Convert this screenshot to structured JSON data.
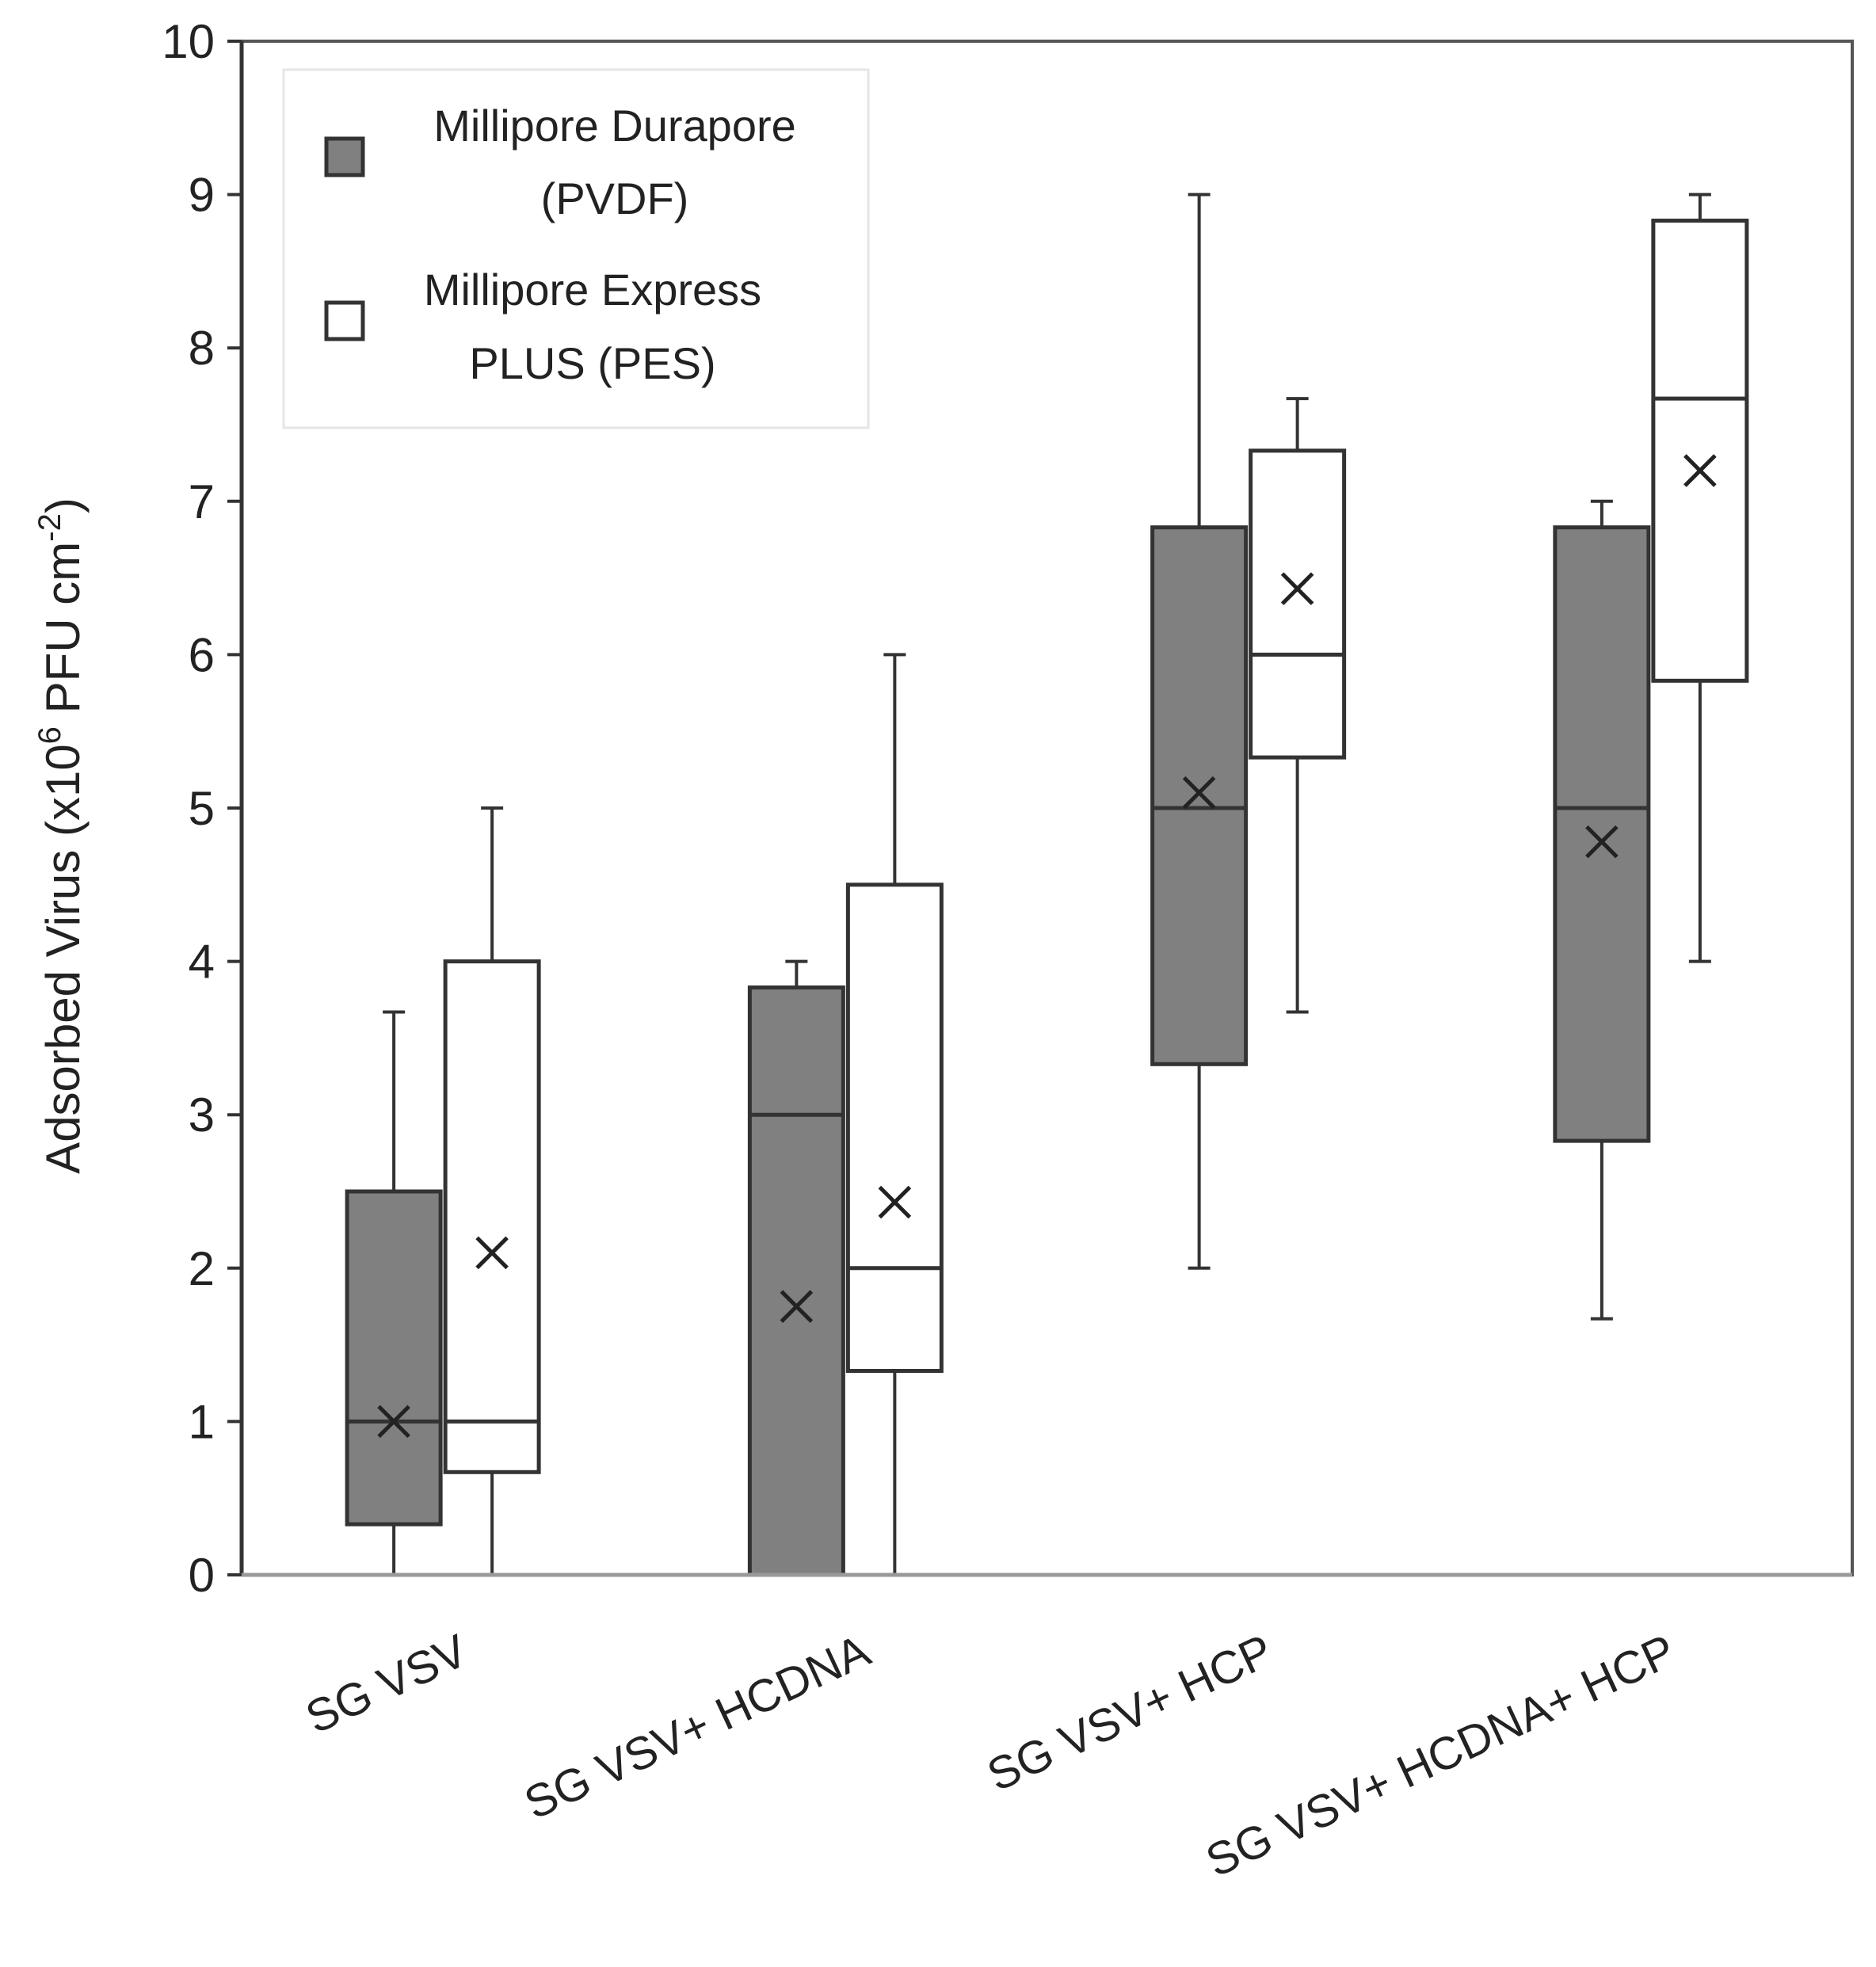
{
  "chart_data": {
    "type": "boxplot",
    "title": "",
    "xlabel": "",
    "ylabel": {
      "prefix": "Adsorbed Virus (x10",
      "exp1": "6",
      "middle": " PFU cm",
      "exp2": "-2",
      "suffix": ")"
    },
    "ylim": [
      0,
      10
    ],
    "yticks": [
      "0",
      "1",
      "2",
      "3",
      "4",
      "5",
      "6",
      "7",
      "8",
      "9",
      "10"
    ],
    "categories": [
      "SG VSV",
      "SG VSV+ HCDNA",
      "SG VSV+ HCP",
      "SG VSV+ HCDNA+ HCP"
    ],
    "legend": {
      "position": "top-left",
      "entries": [
        {
          "lines": [
            "Millipore Durapore",
            "(PVDF)"
          ],
          "color": "#808080"
        },
        {
          "lines": [
            "Millipore Express",
            "PLUS (PES)"
          ],
          "color": "#ffffff"
        }
      ]
    },
    "series": [
      {
        "name": "Millipore Durapore (PVDF)",
        "color": "#808080",
        "boxes": [
          {
            "min": 0,
            "q1": 0.33,
            "median": 1,
            "q3": 2.5,
            "max": 3.67,
            "mean": 1
          },
          {
            "min": 0,
            "q1": 0,
            "median": 3,
            "q3": 3.83,
            "max": 4,
            "mean": 1.75
          },
          {
            "min": 2,
            "q1": 3.33,
            "median": 5,
            "q3": 6.83,
            "max": 9,
            "mean": 5.1
          },
          {
            "min": 1.67,
            "q1": 2.83,
            "median": 5,
            "q3": 6.83,
            "max": 7,
            "mean": 4.78
          }
        ]
      },
      {
        "name": "Millipore Express PLUS (PES)",
        "color": "#ffffff",
        "boxes": [
          {
            "min": 0,
            "q1": 0.67,
            "median": 1,
            "q3": 4,
            "max": 5,
            "mean": 2.1
          },
          {
            "min": 0,
            "q1": 1.33,
            "median": 2,
            "q3": 4.5,
            "max": 6,
            "mean": 2.43
          },
          {
            "min": 3.67,
            "q1": 5.33,
            "median": 6,
            "q3": 7.33,
            "max": 7.67,
            "mean": 6.43
          },
          {
            "min": 4,
            "q1": 5.83,
            "median": 7.67,
            "q3": 8.83,
            "max": 9,
            "mean": 7.2
          }
        ]
      }
    ]
  }
}
